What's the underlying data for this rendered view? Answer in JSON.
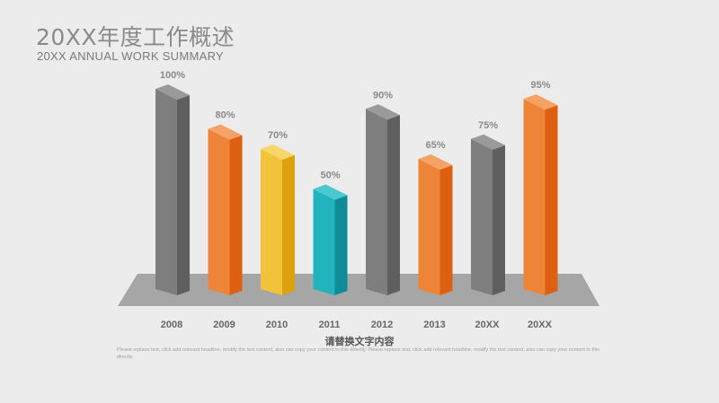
{
  "header": {
    "title": "20XX年度工作概述",
    "subtitle": "20XX ANNUAL WORK SUMMARY"
  },
  "chart_data": {
    "type": "bar",
    "categories": [
      "2008",
      "2009",
      "2010",
      "2011",
      "2012",
      "2013",
      "20XX",
      "20XX"
    ],
    "values": [
      100,
      80,
      70,
      50,
      90,
      65,
      75,
      95
    ],
    "value_labels": [
      "100%",
      "80%",
      "70%",
      "50%",
      "90%",
      "65%",
      "75%",
      "95%"
    ],
    "colors": [
      "gray",
      "orange",
      "yellow",
      "teal",
      "gray",
      "orange",
      "gray",
      "orange"
    ],
    "ylim": [
      0,
      100
    ],
    "grid": false,
    "legend": "none"
  },
  "palette": {
    "gray": {
      "front": "#7e7e7e",
      "side": "#5f5f5f",
      "top": "#9a9a9a"
    },
    "orange": {
      "front": "#ee8438",
      "side": "#dd5f10",
      "top": "#f5a264"
    },
    "yellow": {
      "front": "#f2c23a",
      "side": "#dba20e",
      "top": "#f7d66c"
    },
    "teal": {
      "front": "#21b4bf",
      "side": "#108c96",
      "top": "#4cc8d0"
    },
    "floor": "#a6a6a6"
  },
  "footer": {
    "caption": "请替换文字内容",
    "body": "Please replace text, click add relevant headline, modify the text content, also can copy your content to this directly. Please replace text, click add relevant headline, modify the text content, also can copy your content to this directly."
  }
}
